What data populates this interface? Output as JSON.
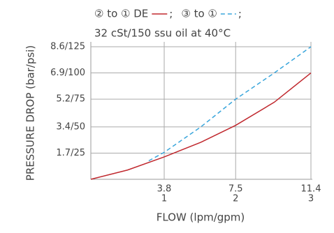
{
  "chart_data": {
    "type": "line",
    "legend_separator": ";",
    "subtitle": "32 cSt/150 ssu oil at 40°C",
    "x_label": "FLOW (lpm/gpm)",
    "y_label": "PRESSURE DROP (bar/psi)",
    "xlim": [
      0,
      11.4
    ],
    "ylim": [
      0,
      8.6
    ],
    "xticks": [
      {
        "value": 3.8,
        "label": [
          "3.8",
          "1"
        ]
      },
      {
        "value": 7.5,
        "label": [
          "7.5",
          "2"
        ]
      },
      {
        "value": 11.4,
        "label": [
          "11.4",
          "3"
        ]
      }
    ],
    "yticks": [
      {
        "value": 1.7,
        "label": "1.7/25"
      },
      {
        "value": 3.4,
        "label": "3.4/50"
      },
      {
        "value": 5.2,
        "label": "5.2/75"
      },
      {
        "value": 6.9,
        "label": "6.9/100"
      },
      {
        "value": 8.6,
        "label": "8.6/125"
      }
    ],
    "grid": true,
    "series": [
      {
        "name": "② to ① DE",
        "color": "#c0282e",
        "dashed": false,
        "x": [
          0,
          1.9,
          3.8,
          5.7,
          7.5,
          9.5,
          11.4
        ],
        "values": [
          0,
          0.6,
          1.45,
          2.4,
          3.5,
          5.0,
          6.9
        ]
      },
      {
        "name": "③ to ①",
        "color": "#3aa6dc",
        "dashed": true,
        "x": [
          3.0,
          3.8,
          5.7,
          7.5,
          9.5,
          11.4
        ],
        "values": [
          1.2,
          1.75,
          3.4,
          5.2,
          6.9,
          8.6
        ]
      }
    ]
  }
}
